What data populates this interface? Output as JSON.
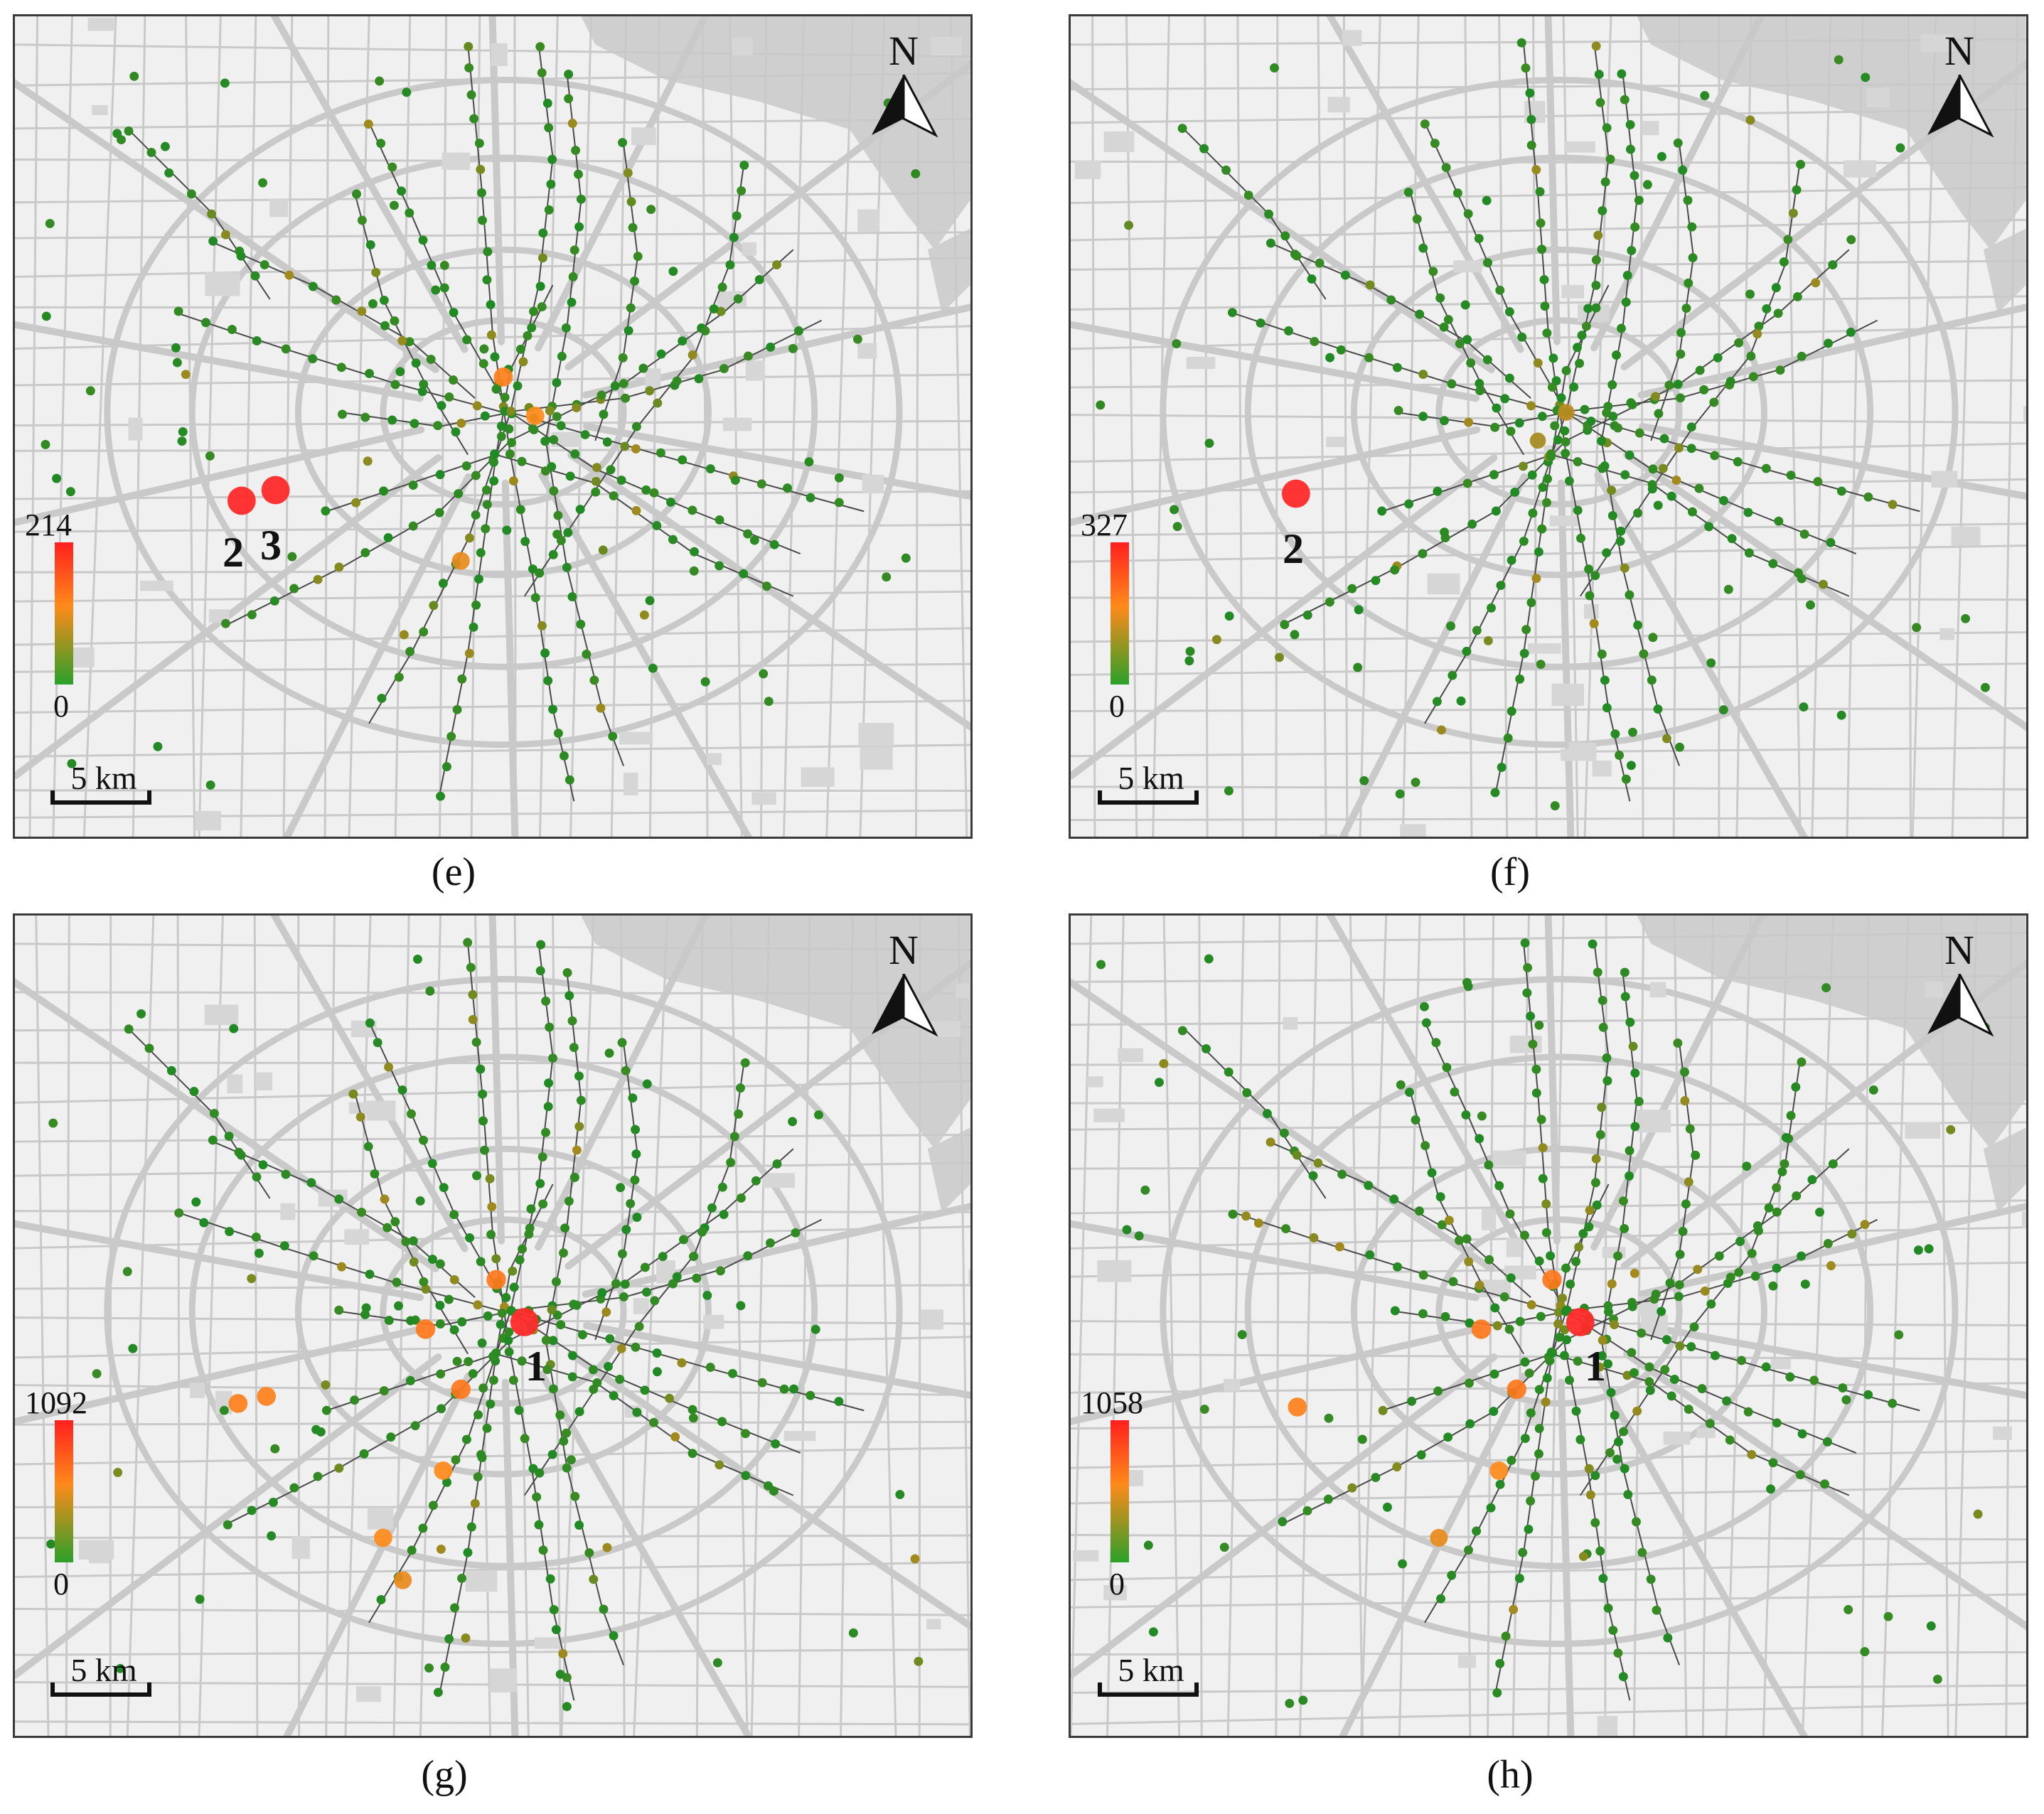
{
  "figure": {
    "panels": [
      {
        "id": "e",
        "label": "(e)",
        "legend_max": "214",
        "legend_min": "0",
        "scale_label": "5 km",
        "north_label": "N",
        "hotspots": [
          {
            "label": "2",
            "level": 1.0
          },
          {
            "label": "3",
            "level": 1.0
          }
        ],
        "highlights": [
          {
            "level": 0.55
          },
          {
            "level": 0.5
          },
          {
            "level": 0.45
          }
        ]
      },
      {
        "id": "f",
        "label": "(f)",
        "legend_max": "327",
        "legend_min": "0",
        "scale_label": "5 km",
        "north_label": "N",
        "hotspots": [
          {
            "label": "2",
            "level": 1.0
          }
        ],
        "highlights": [
          {
            "level": 0.35
          },
          {
            "level": 0.3
          }
        ]
      },
      {
        "id": "g",
        "label": "(g)",
        "legend_max": "1092",
        "legend_min": "0",
        "scale_label": "5 km",
        "north_label": "N",
        "hotspots": [
          {
            "label": "1",
            "level": 1.0
          }
        ],
        "highlights": [
          {
            "level": 0.6
          },
          {
            "level": 0.6
          },
          {
            "level": 0.6
          },
          {
            "level": 0.55
          },
          {
            "level": 0.55
          },
          {
            "level": 0.5
          },
          {
            "level": 0.5
          },
          {
            "level": 0.45
          }
        ]
      },
      {
        "id": "h",
        "label": "(h)",
        "legend_max": "1058",
        "legend_min": "0",
        "scale_label": "5 km",
        "north_label": "N",
        "hotspots": [
          {
            "label": "1",
            "level": 1.0
          }
        ],
        "highlights": [
          {
            "level": 0.6
          },
          {
            "level": 0.6
          },
          {
            "level": 0.6
          },
          {
            "level": 0.55
          },
          {
            "level": 0.5
          },
          {
            "level": 0.45
          }
        ]
      }
    ],
    "colors": {
      "low": "#1f8a24",
      "mid": "#ff8a1a",
      "high": "#ff2a2a",
      "road": "#c9c9c9",
      "water": "#cfcfcf",
      "metro": "#4a4a4a"
    }
  }
}
